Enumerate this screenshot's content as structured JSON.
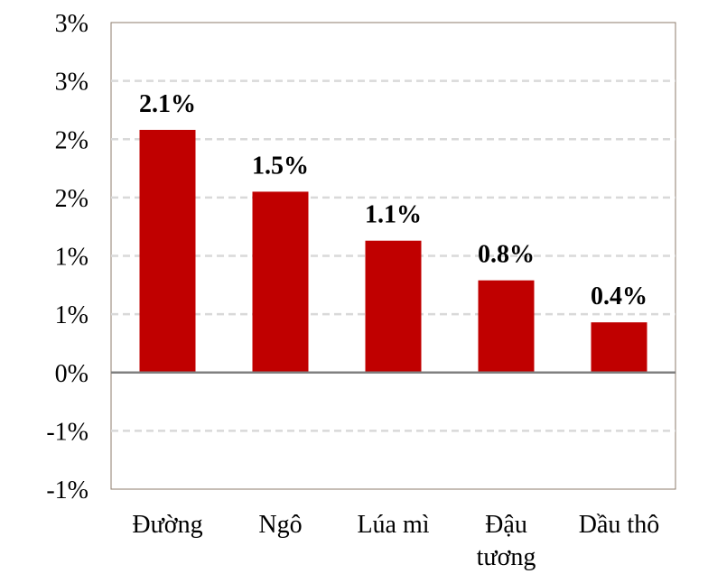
{
  "chart_data": {
    "type": "bar",
    "categories": [
      [
        "Đường"
      ],
      [
        "Ngô"
      ],
      [
        "Lúa mì"
      ],
      [
        "Đậu",
        "tương"
      ],
      [
        "Dầu thô"
      ]
    ],
    "values": [
      2.08,
      1.55,
      1.13,
      0.79,
      0.43
    ],
    "data_labels": [
      "2.1%",
      "1.5%",
      "1.1%",
      "0.8%",
      "0.4%"
    ],
    "y_tick_values": [
      3.0,
      2.5,
      2.0,
      1.5,
      1.0,
      0.5,
      0.0,
      -0.5,
      -1.0
    ],
    "y_tick_labels": [
      "3%",
      "3%",
      "2%",
      "2%",
      "1%",
      "1%",
      "0%",
      "-1%",
      "-1%"
    ],
    "ylim": [
      -1.0,
      3.0
    ],
    "grid": true,
    "title": "",
    "xlabel": "",
    "ylabel": "",
    "colors": {
      "bar": "#c00000",
      "grid": "#d9d9d9",
      "zero_line": "#808080",
      "frame": "#8c7b6b"
    }
  }
}
